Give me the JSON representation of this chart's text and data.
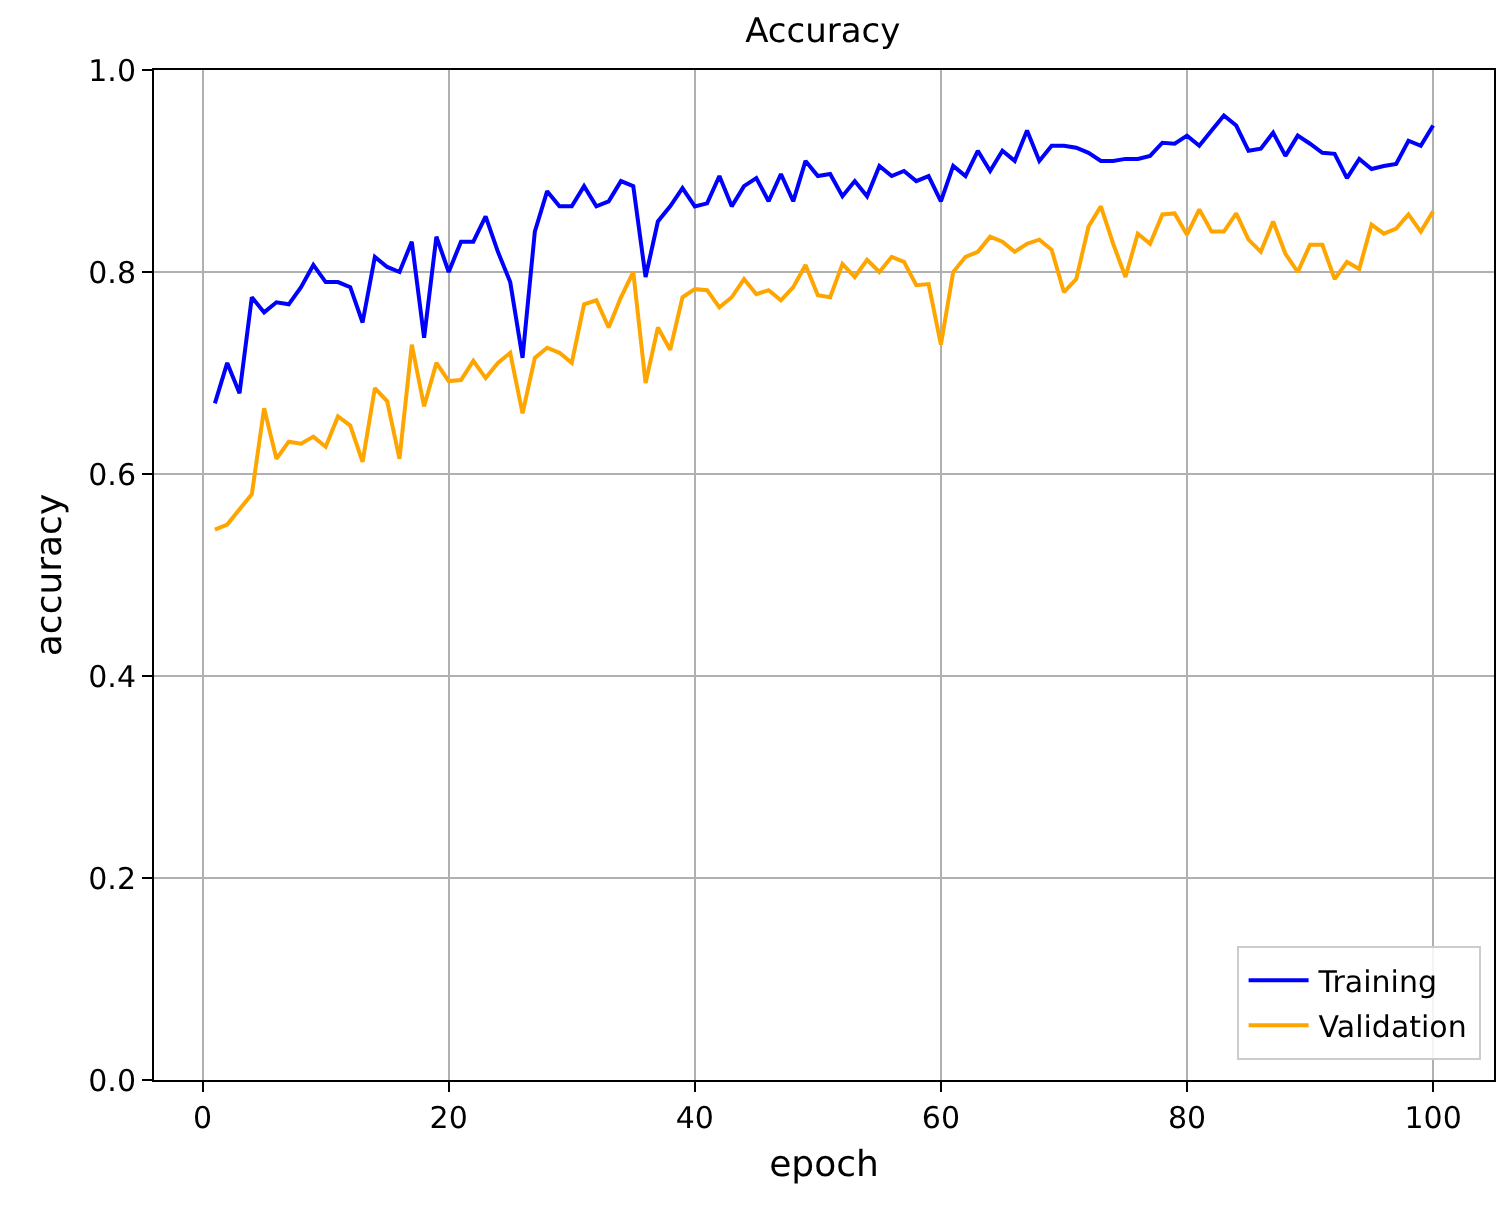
{
  "chart_data": {
    "type": "line",
    "title": "Accuracy",
    "xlabel": "epoch",
    "ylabel": "accuracy",
    "x": [
      1,
      2,
      3,
      4,
      5,
      6,
      7,
      8,
      9,
      10,
      11,
      12,
      13,
      14,
      15,
      16,
      17,
      18,
      19,
      20,
      21,
      22,
      23,
      24,
      25,
      26,
      27,
      28,
      29,
      30,
      31,
      32,
      33,
      34,
      35,
      36,
      37,
      38,
      39,
      40,
      41,
      42,
      43,
      44,
      45,
      46,
      47,
      48,
      49,
      50,
      51,
      52,
      53,
      54,
      55,
      56,
      57,
      58,
      59,
      60,
      61,
      62,
      63,
      64,
      65,
      66,
      67,
      68,
      69,
      70,
      71,
      72,
      73,
      74,
      75,
      76,
      77,
      78,
      79,
      80,
      81,
      82,
      83,
      84,
      85,
      86,
      87,
      88,
      89,
      90,
      91,
      92,
      93,
      94,
      95,
      96,
      97,
      98,
      99,
      100
    ],
    "series": [
      {
        "name": "Training",
        "color": "#0000ff",
        "values": [
          0.67,
          0.71,
          0.68,
          0.775,
          0.76,
          0.77,
          0.768,
          0.785,
          0.807,
          0.79,
          0.79,
          0.785,
          0.75,
          0.815,
          0.805,
          0.8,
          0.83,
          0.735,
          0.835,
          0.8,
          0.83,
          0.83,
          0.855,
          0.82,
          0.79,
          0.715,
          0.84,
          0.88,
          0.865,
          0.865,
          0.885,
          0.865,
          0.87,
          0.89,
          0.885,
          0.795,
          0.85,
          0.865,
          0.883,
          0.865,
          0.868,
          0.895,
          0.865,
          0.885,
          0.893,
          0.87,
          0.897,
          0.87,
          0.91,
          0.895,
          0.897,
          0.875,
          0.89,
          0.875,
          0.905,
          0.895,
          0.9,
          0.89,
          0.895,
          0.87,
          0.905,
          0.895,
          0.92,
          0.9,
          0.92,
          0.91,
          0.94,
          0.91,
          0.925,
          0.925,
          0.923,
          0.918,
          0.91,
          0.91,
          0.912,
          0.912,
          0.915,
          0.928,
          0.927,
          0.935,
          0.925,
          0.94,
          0.955,
          0.945,
          0.92,
          0.922,
          0.938,
          0.915,
          0.935,
          0.927,
          0.918,
          0.917,
          0.893,
          0.912,
          0.902,
          0.905,
          0.907,
          0.93,
          0.925,
          0.945
        ]
      },
      {
        "name": "Validation",
        "color": "#ffa500",
        "values": [
          0.545,
          0.55,
          0.565,
          0.58,
          0.665,
          0.615,
          0.632,
          0.63,
          0.637,
          0.627,
          0.657,
          0.648,
          0.612,
          0.685,
          0.672,
          0.615,
          0.728,
          0.667,
          0.71,
          0.692,
          0.693,
          0.712,
          0.695,
          0.71,
          0.72,
          0.66,
          0.715,
          0.725,
          0.72,
          0.71,
          0.768,
          0.772,
          0.745,
          0.775,
          0.8,
          0.69,
          0.745,
          0.723,
          0.775,
          0.783,
          0.782,
          0.765,
          0.775,
          0.793,
          0.778,
          0.782,
          0.772,
          0.785,
          0.807,
          0.777,
          0.775,
          0.808,
          0.795,
          0.812,
          0.8,
          0.815,
          0.81,
          0.787,
          0.788,
          0.728,
          0.8,
          0.815,
          0.82,
          0.835,
          0.83,
          0.82,
          0.828,
          0.832,
          0.822,
          0.78,
          0.793,
          0.845,
          0.865,
          0.828,
          0.795,
          0.838,
          0.828,
          0.857,
          0.858,
          0.837,
          0.862,
          0.84,
          0.84,
          0.858,
          0.832,
          0.82,
          0.85,
          0.818,
          0.8,
          0.827,
          0.827,
          0.793,
          0.81,
          0.803,
          0.847,
          0.838,
          0.843,
          0.857,
          0.84,
          0.86
        ]
      }
    ],
    "xlim": [
      -3.95,
      104.95
    ],
    "xticks": [
      0,
      20,
      40,
      60,
      80,
      100
    ],
    "ylim": [
      0,
      1
    ],
    "yticks": [
      {
        "value": 0,
        "label": "0.0"
      },
      {
        "value": 0.2,
        "label": "0.2"
      },
      {
        "value": 0.4,
        "label": "0.4"
      },
      {
        "value": 0.6,
        "label": "0.6"
      },
      {
        "value": 0.8,
        "label": "0.8"
      },
      {
        "value": 1,
        "label": "1.0"
      }
    ],
    "grid": true,
    "legend": "bottom right",
    "marker": "none",
    "line_style": "solid"
  }
}
